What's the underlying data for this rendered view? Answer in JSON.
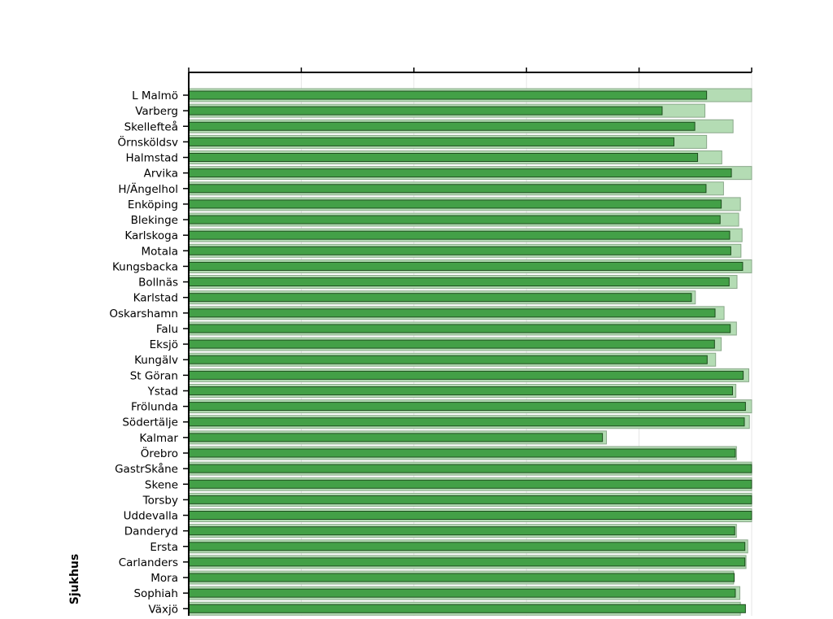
{
  "chart_data": {
    "type": "bar",
    "orientation": "horizontal",
    "title": "",
    "xlabel": "",
    "ylabel": "Sjukhus",
    "xlim": [
      0,
      100
    ],
    "grid": true,
    "legend": "none",
    "categories": [
      "L Malmö",
      "Varberg",
      "Skellefteå",
      "Örnsköldsv",
      "Halmstad",
      "Arvika",
      "H/Ängelhol",
      "Enköping",
      "Blekinge",
      "Karlskoga",
      "Motala",
      "Kungsbacka",
      "Bollnäs",
      "Karlstad",
      "Oskarshamn",
      "Falu",
      "Eksjö",
      "Kungälv",
      "St Göran",
      "Ystad",
      "Frölunda",
      "Södertälje",
      "Kalmar",
      "Örebro",
      "GastrSkåne",
      "Skene",
      "Torsby",
      "Uddevalla",
      "Danderyd",
      "Ersta",
      "Carlanders",
      "Mora",
      "Sophiah",
      "Växjö"
    ],
    "series": [
      {
        "values": [
          100,
          91.7,
          96.7,
          92.0,
          94.7,
          100,
          95.0,
          98.0,
          97.7,
          98.3,
          98.1,
          100,
          97.4,
          90.0,
          95.1,
          97.3,
          94.6,
          93.6,
          99.5,
          97.2,
          100,
          99.6,
          74.2,
          97.3,
          100,
          100,
          100,
          100,
          97.3,
          99.3,
          99.0,
          96.8,
          97.9,
          98.0
        ],
        "color": "#b4dcb4"
      },
      {
        "values": [
          92.0,
          84.1,
          89.9,
          86.2,
          90.4,
          96.4,
          91.9,
          94.6,
          94.4,
          96.1,
          96.3,
          98.4,
          96.0,
          89.3,
          93.5,
          96.2,
          93.4,
          92.1,
          98.5,
          96.6,
          98.9,
          98.7,
          73.5,
          97.1,
          100,
          100,
          100,
          100,
          97.0,
          98.8,
          98.8,
          96.9,
          97.1,
          98.9
        ],
        "color": "#43a047"
      }
    ]
  },
  "colors": {
    "bar_main": "#43a047",
    "bar_main_stroke": "#1e4d1e",
    "bar_back": "#b4dcb4",
    "bar_back_stroke": "#8aa88a",
    "axis": "#000000",
    "grid": "#e6e6e6"
  }
}
